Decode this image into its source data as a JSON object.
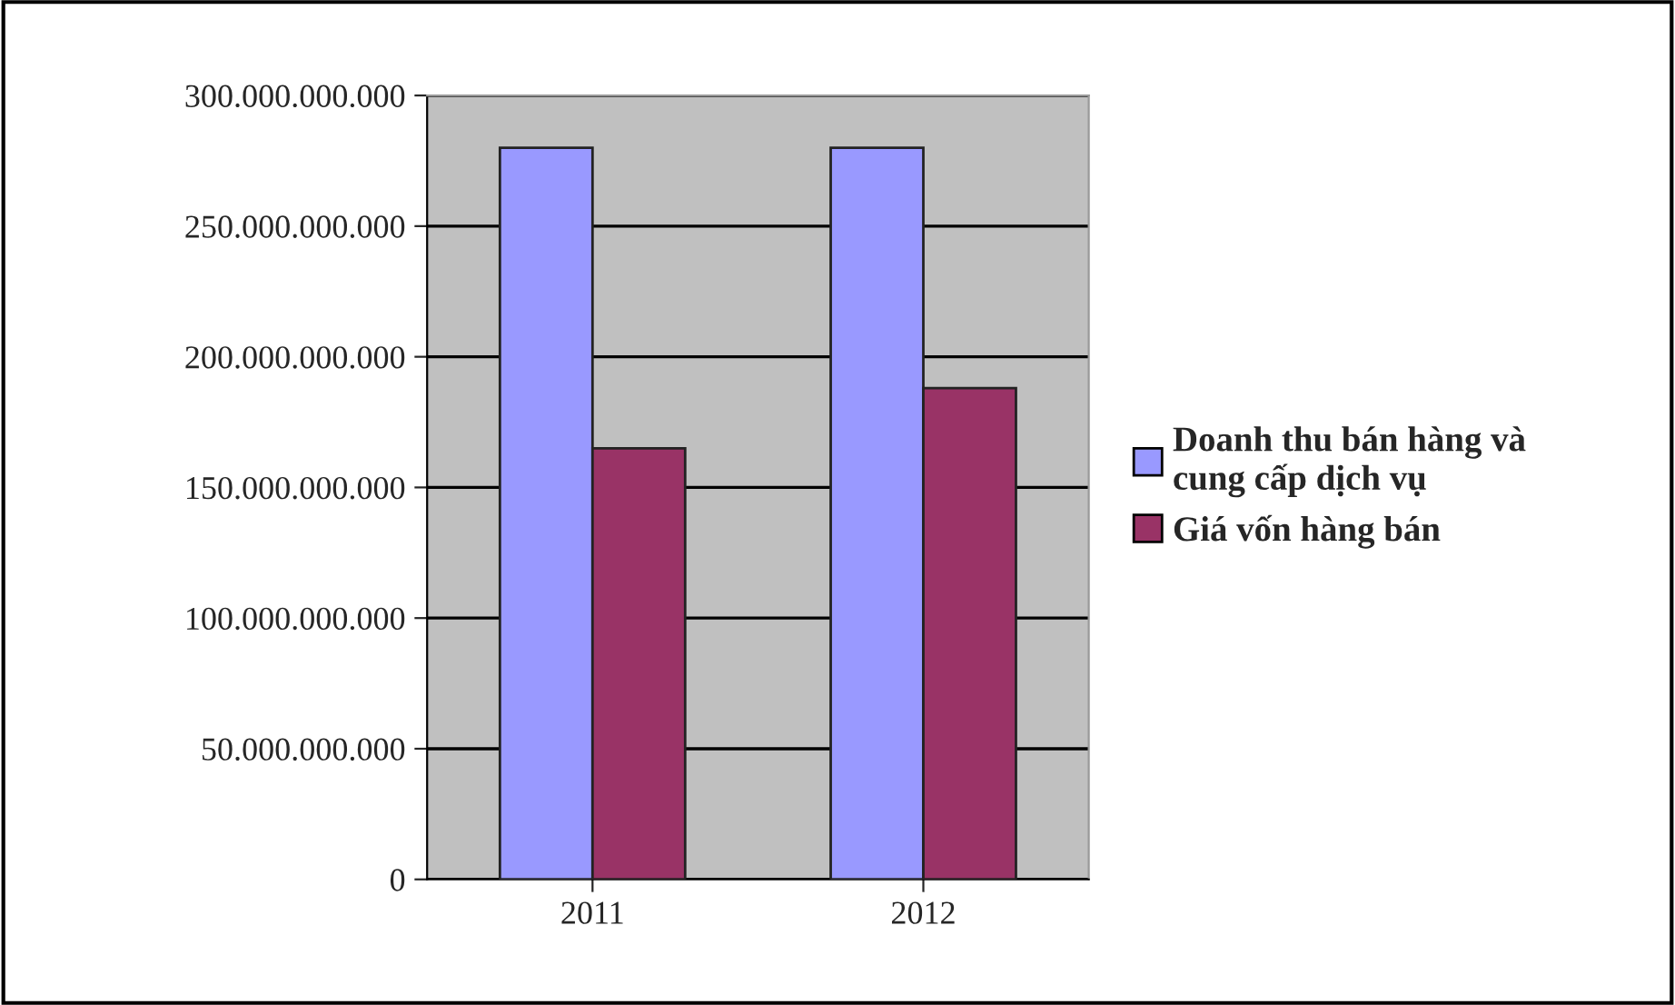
{
  "chart_data": {
    "type": "bar",
    "categories": [
      "2011",
      "2012"
    ],
    "series": [
      {
        "name": "Doanh thu bán hàng và\ncung cấp dịch vụ",
        "color": "#9999ff",
        "values": [
          280000000000,
          280000000000
        ]
      },
      {
        "name": "Giá vốn hàng bán",
        "color": "#993366",
        "values": [
          165000000000,
          188000000000
        ]
      }
    ],
    "ylim": [
      0,
      300000000000
    ],
    "yticks": [
      {
        "value": 0,
        "label": "0"
      },
      {
        "value": 50000000000,
        "label": "50.000.000.000"
      },
      {
        "value": 100000000000,
        "label": "100.000.000.000"
      },
      {
        "value": 150000000000,
        "label": "150.000.000.000"
      },
      {
        "value": 200000000000,
        "label": "200.000.000.000"
      },
      {
        "value": 250000000000,
        "label": "250.000.000.000"
      },
      {
        "value": 300000000000,
        "label": "300.000.000.000"
      }
    ],
    "grid": "y",
    "legend": "right"
  }
}
